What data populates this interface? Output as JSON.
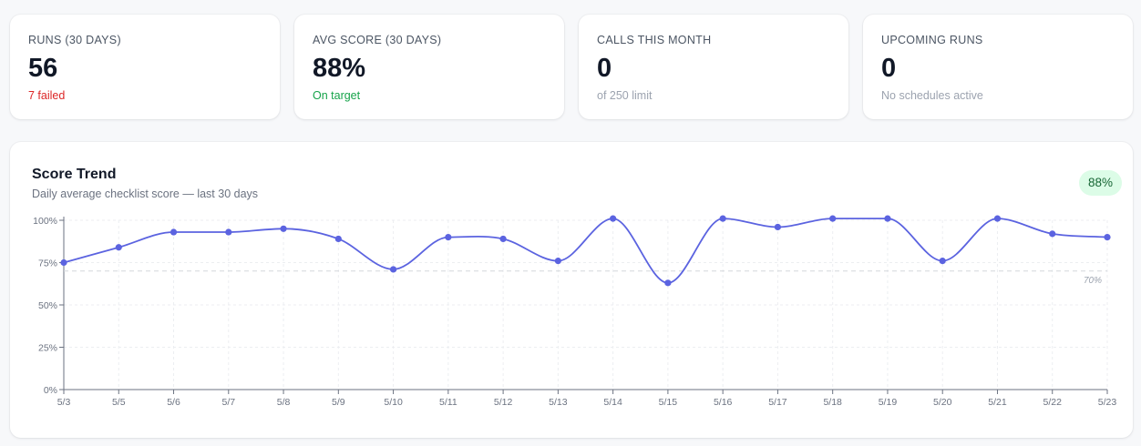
{
  "stats": [
    {
      "label": "RUNS (30 DAYS)",
      "value": "56",
      "sub": "7 failed",
      "sub_color": "#dc2626"
    },
    {
      "label": "AVG SCORE (30 DAYS)",
      "value": "88%",
      "sub": "On target",
      "sub_color": "#16a34a"
    },
    {
      "label": "CALLS THIS MONTH",
      "value": "0",
      "sub": "of 250 limit",
      "sub_color": "#9ca3af"
    },
    {
      "label": "UPCOMING RUNS",
      "value": "0",
      "sub": "No schedules active",
      "sub_color": "#9ca3af"
    }
  ],
  "trend": {
    "title": "Score Trend",
    "subtitle": "Daily average checklist score — last 30 days",
    "badge": "88%"
  },
  "colors": {
    "line": "#5b63e0",
    "badge_bg": "#dcfce7",
    "badge_text": "#166534",
    "failed": "#dc2626",
    "on_target": "#16a34a"
  },
  "chart_data": {
    "type": "line",
    "x": [
      "5/3",
      "5/5",
      "5/6",
      "5/7",
      "5/8",
      "5/9",
      "5/10",
      "5/11",
      "5/12",
      "5/13",
      "5/14",
      "5/15",
      "5/16",
      "5/17",
      "5/18",
      "5/19",
      "5/20",
      "5/21",
      "5/22",
      "5/23"
    ],
    "series": [
      {
        "values": [
          75,
          84,
          93,
          93,
          95,
          89,
          71,
          90,
          89,
          76,
          101,
          63,
          101,
          96,
          101,
          101,
          76,
          101,
          92,
          90
        ]
      }
    ],
    "yticks": [
      "0%",
      "25%",
      "50%",
      "75%",
      "100%"
    ],
    "ylim": [
      0,
      100
    ],
    "reference_line": {
      "value": 70,
      "label": "70%"
    },
    "grid": true
  }
}
